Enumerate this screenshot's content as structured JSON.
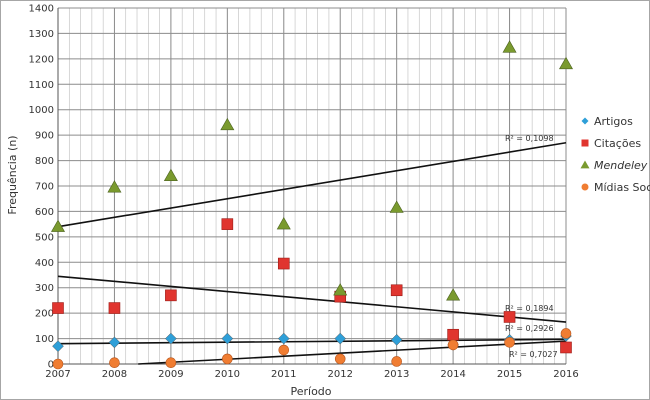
{
  "chart_data": {
    "type": "scatter",
    "xlabel": "Período",
    "ylabel": "Frequência (n)",
    "x": [
      2007,
      2008,
      2009,
      2010,
      2011,
      2012,
      2013,
      2014,
      2015,
      2016
    ],
    "xlim": [
      2007,
      2016
    ],
    "ylim": [
      0,
      1400
    ],
    "y_ticks": [
      0,
      100,
      200,
      300,
      400,
      500,
      600,
      700,
      800,
      900,
      1000,
      1100,
      1200,
      1300,
      1400
    ],
    "grid": true,
    "legend_position": "right",
    "series": [
      {
        "name": "Artigos",
        "italic": false,
        "marker": "diamond",
        "color": "#2E9FD8",
        "values": [
          70,
          85,
          100,
          100,
          100,
          100,
          95,
          75,
          95,
          110
        ],
        "trendline": {
          "from": [
            2007,
            80
          ],
          "to": [
            2016,
            97
          ],
          "r2_label": "R² = 0,2926"
        }
      },
      {
        "name": "Citações",
        "italic": false,
        "marker": "square",
        "color": "#E0352F",
        "values": [
          220,
          220,
          270,
          550,
          395,
          265,
          290,
          115,
          185,
          65
        ],
        "trendline": {
          "from": [
            2007,
            345
          ],
          "to": [
            2016,
            165
          ],
          "r2_label": "R² = 0,1894"
        }
      },
      {
        "name": "Mendeley",
        "italic": true,
        "marker": "triangle",
        "color": "#7A9A2E",
        "values": [
          540,
          695,
          740,
          940,
          550,
          290,
          615,
          270,
          1245,
          1180
        ],
        "trendline": {
          "from": [
            2007,
            540
          ],
          "to": [
            2016,
            870
          ],
          "r2_label": "R² = 0,1098"
        }
      },
      {
        "name": "Mídias Sociais",
        "italic": false,
        "marker": "circle",
        "color": "#F07D32",
        "values": [
          0,
          5,
          5,
          20,
          55,
          20,
          10,
          75,
          85,
          120
        ],
        "trendline": {
          "from": [
            2008,
            -5
          ],
          "to": [
            2016,
            90
          ],
          "r2_label": "R² = 0,7027"
        }
      }
    ]
  }
}
